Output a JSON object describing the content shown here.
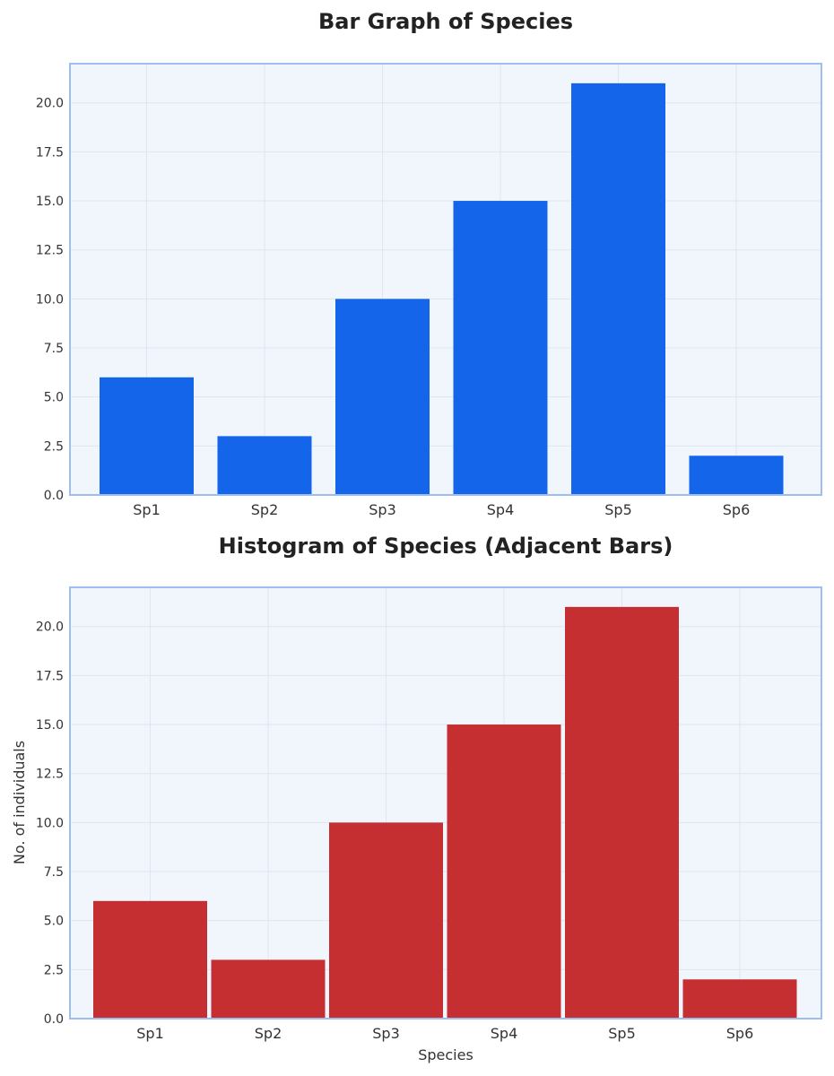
{
  "chart_data": [
    {
      "type": "bar",
      "title": "Bar Graph of Species",
      "categories": [
        "Sp1",
        "Sp2",
        "Sp3",
        "Sp4",
        "Sp5",
        "Sp6"
      ],
      "values": [
        6,
        3,
        10,
        15,
        21,
        2
      ],
      "xlabel": "",
      "ylabel": "",
      "ylim": [
        0,
        22
      ],
      "yticks": [
        "0.0",
        "2.5",
        "5.0",
        "7.5",
        "10.0",
        "12.5",
        "15.0",
        "17.5",
        "20.0"
      ],
      "grid": true,
      "bar_style": "separated",
      "color": "#1565ea"
    },
    {
      "type": "bar",
      "title": "Histogram of Species (Adjacent Bars)",
      "categories": [
        "Sp1",
        "Sp2",
        "Sp3",
        "Sp4",
        "Sp5",
        "Sp6"
      ],
      "values": [
        6,
        3,
        10,
        15,
        21,
        2
      ],
      "xlabel": "Species",
      "ylabel": "No. of individuals",
      "ylim": [
        0,
        22
      ],
      "yticks": [
        "0.0",
        "2.5",
        "5.0",
        "7.5",
        "10.0",
        "12.5",
        "15.0",
        "17.5",
        "20.0"
      ],
      "grid": true,
      "bar_style": "adjacent",
      "color": "#c62f31"
    }
  ],
  "style": {
    "plot_background": "#f1f6fd",
    "plot_border": "#9dbef0",
    "grid_color": "#dde6f3"
  }
}
